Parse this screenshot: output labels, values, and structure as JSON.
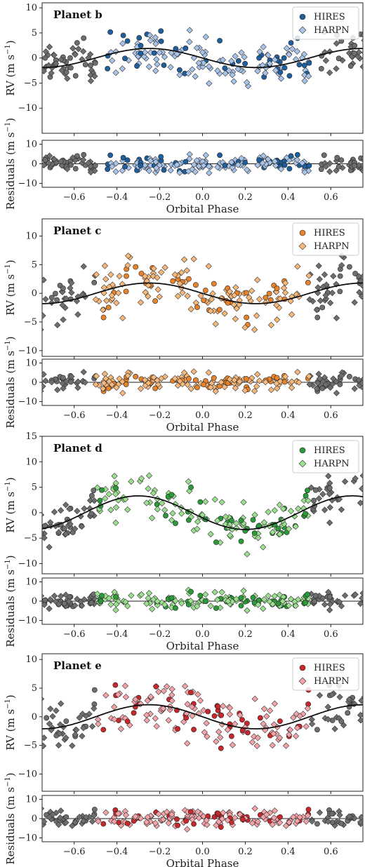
{
  "chart_data": [
    {
      "type": "scatter",
      "title": "Planet b",
      "xlabel": "Orbital Phase",
      "ylabel": "RV (m s$^{-1}$)",
      "ylabel_text": "RV (m s",
      "ylabel_exp": "−1",
      "resid_label": "Residuals (m s",
      "xlim": [
        -0.75,
        0.75
      ],
      "ylim": [
        -15,
        11
      ],
      "yticks": [
        -10,
        -5,
        0,
        5,
        10
      ],
      "resid_ylim": [
        -12,
        12
      ],
      "resid_yticks": [
        -10,
        0,
        10
      ],
      "xticks": [
        -0.6,
        -0.4,
        -0.2,
        0.0,
        0.2,
        0.4,
        0.6
      ],
      "xtick_labels": [
        "−0.6",
        "−0.4",
        "−0.2",
        "0.0",
        "0.2",
        "0.4",
        "0.6"
      ],
      "amplitude": 1.9,
      "peak_phase": -0.25,
      "seed": 11,
      "colors": {
        "hires": "#1f5f9e",
        "harpn": "#a9c4ea"
      },
      "legend_position": "top-right",
      "series": [
        {
          "name": "HIRES",
          "marker": "circle"
        },
        {
          "name": "HARPN",
          "marker": "diamond"
        }
      ]
    },
    {
      "type": "scatter",
      "title": "Planet c",
      "xlabel": "Orbital Phase",
      "ylabel": "RV (m s$^{-1}$)",
      "ylabel_text": "RV (m s",
      "ylabel_exp": "−1",
      "resid_label": "Residuals (m s",
      "xlim": [
        -0.75,
        0.75
      ],
      "ylim": [
        -11,
        13
      ],
      "yticks": [
        -10,
        -5,
        0,
        5,
        10
      ],
      "resid_ylim": [
        -12,
        12
      ],
      "resid_yticks": [
        -10,
        0,
        10
      ],
      "xticks": [
        -0.6,
        -0.4,
        -0.2,
        0.0,
        0.2,
        0.4,
        0.6
      ],
      "xtick_labels": [
        "−0.6",
        "−0.4",
        "−0.2",
        "0.0",
        "0.2",
        "0.4",
        "0.6"
      ],
      "amplitude": 1.8,
      "peak_phase": -0.25,
      "seed": 23,
      "colors": {
        "hires": "#e8822a",
        "harpn": "#f7b87a"
      },
      "legend_position": "top-right",
      "series": [
        {
          "name": "HIRES",
          "marker": "circle"
        },
        {
          "name": "HARPN",
          "marker": "diamond"
        }
      ]
    },
    {
      "type": "scatter",
      "title": "Planet d",
      "xlabel": "Orbital Phase",
      "ylabel": "RV (m s$^{-1}$)",
      "ylabel_text": "RV (m s",
      "ylabel_exp": "−1",
      "resid_label": "Residuals (m s",
      "xlim": [
        -0.75,
        0.75
      ],
      "ylim": [
        -12,
        15
      ],
      "yticks": [
        -10,
        -5,
        0,
        5,
        10,
        15
      ],
      "resid_ylim": [
        -12,
        12
      ],
      "resid_yticks": [
        -10,
        0,
        10
      ],
      "xticks": [
        -0.6,
        -0.4,
        -0.2,
        0.0,
        0.2,
        0.4,
        0.6
      ],
      "xtick_labels": [
        "−0.6",
        "−0.4",
        "−0.2",
        "0.0",
        "0.2",
        "0.4",
        "0.6"
      ],
      "amplitude": 3.3,
      "peak_phase": -0.3,
      "seed": 37,
      "colors": {
        "hires": "#2b9a3a",
        "harpn": "#9be08f"
      },
      "legend_position": "top-right",
      "series": [
        {
          "name": "HIRES",
          "marker": "circle"
        },
        {
          "name": "HARPN",
          "marker": "diamond"
        }
      ]
    },
    {
      "type": "scatter",
      "title": "Planet e",
      "xlabel": "Orbital Phase",
      "ylabel": "RV (m s$^{-1}$)",
      "ylabel_text": "RV (m s",
      "ylabel_exp": "−1",
      "resid_label": "Residuals (m s",
      "xlim": [
        -0.75,
        0.75
      ],
      "ylim": [
        -13,
        11
      ],
      "yticks": [
        -10,
        -5,
        0,
        5,
        10
      ],
      "resid_ylim": [
        -12,
        12
      ],
      "resid_yticks": [
        -10,
        0,
        10
      ],
      "xticks": [
        -0.6,
        -0.4,
        -0.2,
        0.0,
        0.2,
        0.4,
        0.6
      ],
      "xtick_labels": [
        "−0.6",
        "−0.4",
        "−0.2",
        "0.0",
        "0.2",
        "0.4",
        "0.6"
      ],
      "amplitude": 2.1,
      "peak_phase": -0.25,
      "seed": 51,
      "colors": {
        "hires": "#c8282c",
        "harpn": "#f4a3a8"
      },
      "legend_position": "top-right",
      "series": [
        {
          "name": "HIRES",
          "marker": "circle"
        },
        {
          "name": "HARPN",
          "marker": "diamond"
        }
      ]
    }
  ]
}
